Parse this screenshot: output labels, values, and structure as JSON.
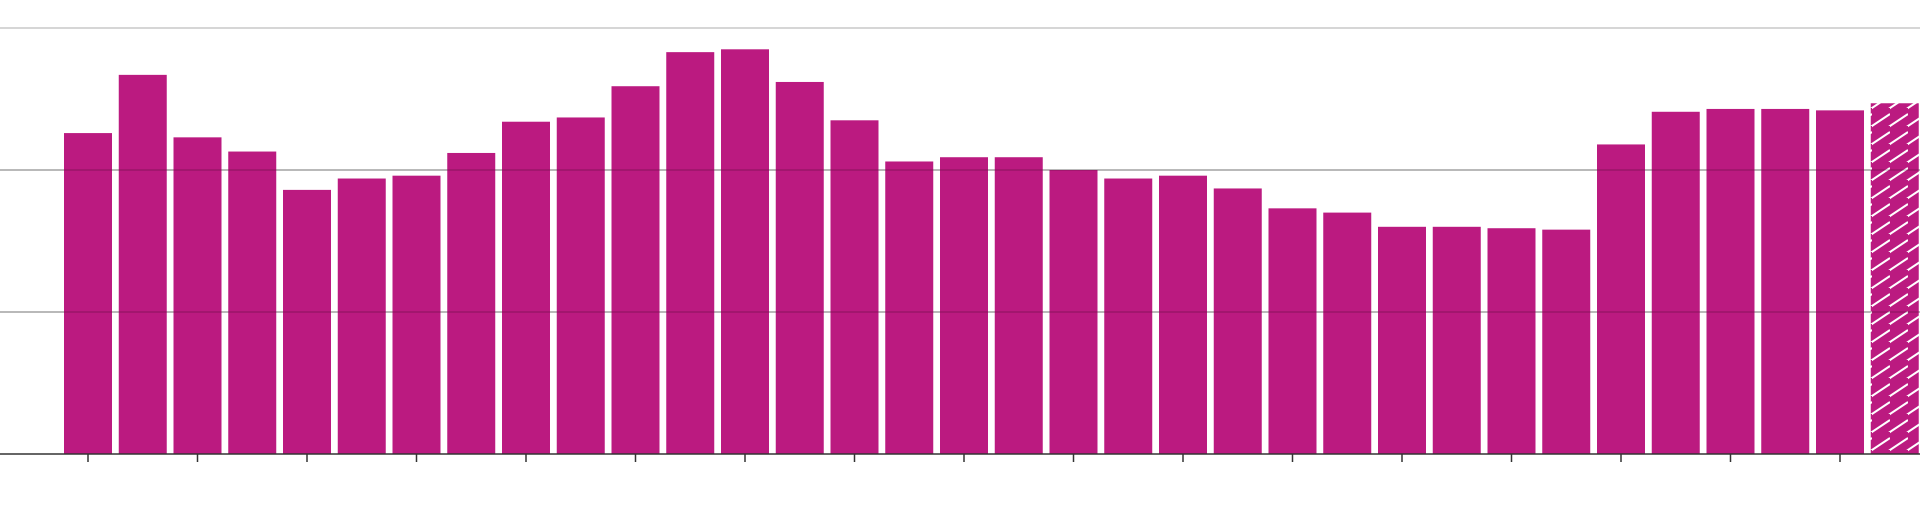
{
  "chart_data": {
    "type": "bar",
    "ylim": [
      0,
      3
    ],
    "grid": true,
    "gridlines": [
      1,
      2,
      3
    ],
    "colors": {
      "bar": "#bb1a80",
      "hatch_line": "#ffffff",
      "grid": "#c8c8c8",
      "axis": "#333333",
      "background": "#ffffff"
    },
    "values": [
      2.26,
      2.67,
      2.23,
      2.13,
      1.86,
      1.94,
      1.96,
      2.12,
      2.34,
      2.37,
      2.59,
      2.83,
      2.85,
      2.62,
      2.35,
      2.06,
      2.09,
      2.09,
      2.0,
      1.94,
      1.96,
      1.87,
      1.73,
      1.7,
      1.6,
      1.6,
      1.59,
      1.58,
      2.18,
      2.41,
      2.43,
      2.43,
      2.42,
      2.47
    ],
    "hatched": [
      false,
      false,
      false,
      false,
      false,
      false,
      false,
      false,
      false,
      false,
      false,
      false,
      false,
      false,
      false,
      false,
      false,
      false,
      false,
      false,
      false,
      false,
      false,
      false,
      false,
      false,
      false,
      false,
      false,
      false,
      false,
      false,
      false,
      true
    ]
  }
}
